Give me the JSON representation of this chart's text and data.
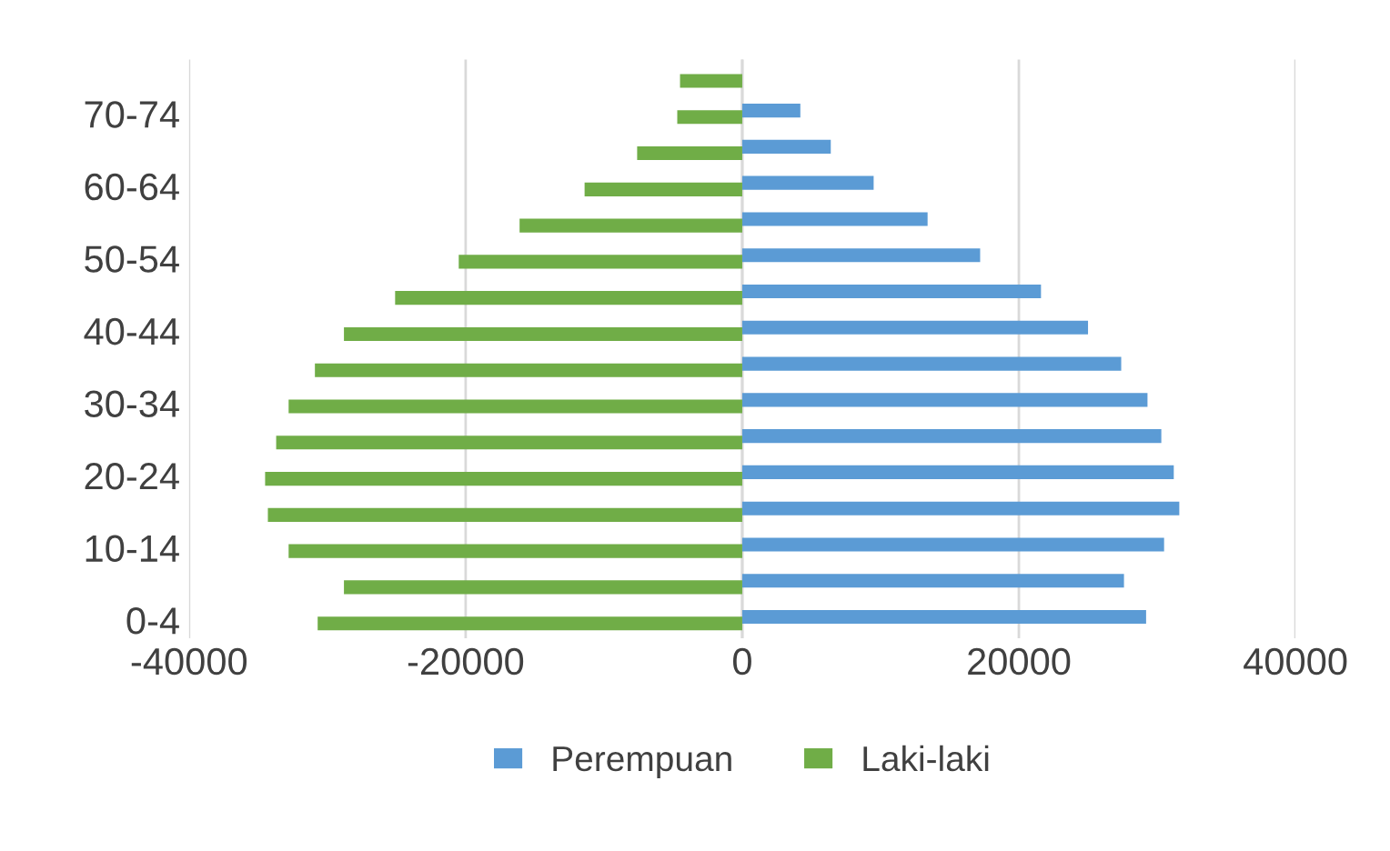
{
  "chart_data": {
    "type": "bar",
    "orientation": "horizontal",
    "categories": [
      null,
      "70-74",
      null,
      "60-64",
      null,
      "50-54",
      null,
      "40-44",
      null,
      "30-34",
      null,
      "20-24",
      null,
      "10-14",
      null,
      "0-4"
    ],
    "series": [
      {
        "name": "Perempuan",
        "color": "#5b9bd5",
        "values": [
          null,
          4200,
          6400,
          9500,
          13400,
          17200,
          21600,
          25000,
          27400,
          29300,
          30300,
          31200,
          31600,
          30500,
          27600,
          29200
        ]
      },
      {
        "name": "Laki-laki",
        "color": "#70ad47",
        "values": [
          -4500,
          -4700,
          -7600,
          -11400,
          -16100,
          -20500,
          -25100,
          -28800,
          -30900,
          -32800,
          -33700,
          -34500,
          -34300,
          -32800,
          -28800,
          -30700
        ]
      }
    ],
    "xlim": [
      -40000,
      40000
    ],
    "xticks": [
      -40000,
      -20000,
      0,
      20000,
      40000
    ],
    "grid": "x",
    "legend": "bottom"
  }
}
